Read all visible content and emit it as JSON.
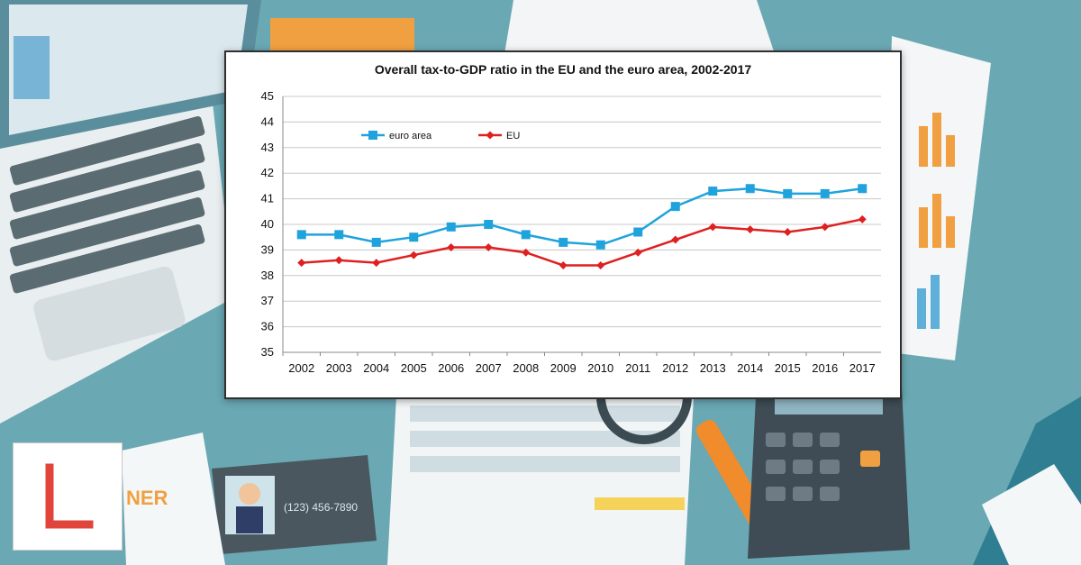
{
  "scene": {
    "business_card_phone": "(123) 456-7890",
    "clipboard_text": "NER"
  },
  "chart_data": {
    "type": "line",
    "title": "Overall tax-to-GDP ratio in the EU and the euro area, 2002-2017",
    "xlabel": "",
    "ylabel": "",
    "categories": [
      "2002",
      "2003",
      "2004",
      "2005",
      "2006",
      "2007",
      "2008",
      "2009",
      "2010",
      "2011",
      "2012",
      "2013",
      "2014",
      "2015",
      "2016",
      "2017"
    ],
    "yticks": [
      35,
      36,
      37,
      38,
      39,
      40,
      41,
      42,
      43,
      44,
      45
    ],
    "ylim": [
      35,
      45
    ],
    "grid": "horizontal",
    "legend_position": "top-left",
    "series": [
      {
        "name": "euro area",
        "color": "#1fa3dc",
        "marker": "square",
        "values": [
          39.6,
          39.6,
          39.3,
          39.5,
          39.9,
          40.0,
          39.6,
          39.3,
          39.2,
          39.7,
          40.7,
          41.3,
          41.4,
          41.2,
          41.2,
          41.4
        ]
      },
      {
        "name": "EU",
        "color": "#e02020",
        "marker": "diamond",
        "values": [
          38.5,
          38.6,
          38.5,
          38.8,
          39.1,
          39.1,
          38.9,
          38.4,
          38.4,
          38.9,
          39.4,
          39.9,
          39.8,
          39.7,
          39.9,
          40.2
        ]
      }
    ]
  }
}
